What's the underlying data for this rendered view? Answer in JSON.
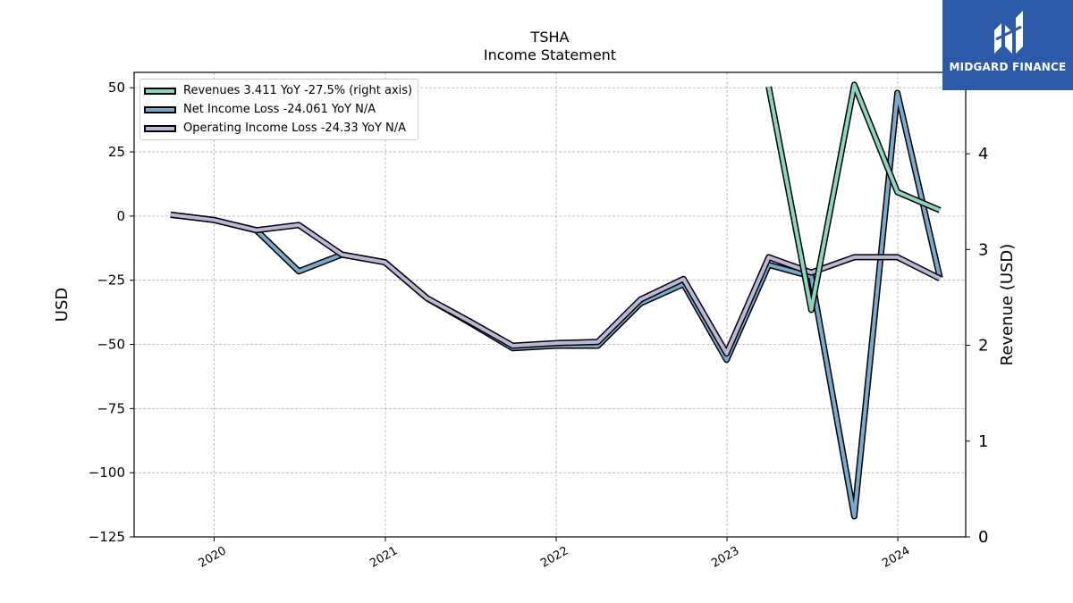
{
  "header": {
    "title": "TSHA",
    "subtitle": "Income Statement"
  },
  "brand": {
    "name": "MIDGARD FINANCE",
    "color": "#2c5aa8"
  },
  "chart_data": {
    "type": "line",
    "ylabel_left": "USD",
    "ylabel_right": "Revenue (USD)",
    "ylim_left": [
      -125,
      56
    ],
    "yticks_left": [
      50,
      25,
      0,
      -25,
      -50,
      -75,
      -100,
      -125
    ],
    "ylim_right": [
      0,
      4.85
    ],
    "yticks_right": [
      0,
      1,
      2,
      3,
      4
    ],
    "xlim": [
      "2019-07-14",
      "2024-05-25"
    ],
    "xticks": [
      {
        "date": "2020-01-01",
        "label": "2020"
      },
      {
        "date": "2021-01-01",
        "label": "2021"
      },
      {
        "date": "2022-01-01",
        "label": "2022"
      },
      {
        "date": "2023-01-01",
        "label": "2023"
      },
      {
        "date": "2024-01-01",
        "label": "2024"
      }
    ],
    "grid": true,
    "legend_position": "top-left",
    "series": [
      {
        "name": "Net Income Loss",
        "legend": "Net Income Loss  -24.061 YoY N/A",
        "axis": "left",
        "color": "#7aaacb",
        "x": [
          "2019-09-30",
          "2019-12-31",
          "2020-03-31",
          "2020-06-30",
          "2020-09-30",
          "2020-12-31",
          "2021-03-31",
          "2021-06-30",
          "2021-09-30",
          "2021-12-31",
          "2022-03-31",
          "2022-06-30",
          "2022-09-30",
          "2022-12-31",
          "2023-03-31",
          "2023-06-30",
          "2023-09-30",
          "2023-12-31",
          "2024-03-31"
        ],
        "y": [
          0.5,
          -1.5,
          -5.5,
          -21.5,
          -15,
          -18,
          -32,
          -41.5,
          -51.5,
          -50.5,
          -50.5,
          -34,
          -26.5,
          -56,
          -19,
          -23.5,
          -117,
          48,
          -24.061
        ]
      },
      {
        "name": "Operating Income Loss",
        "legend": "Operating Income Loss  -24.33 YoY N/A",
        "axis": "left",
        "color": "#bcb6d8",
        "x": [
          "2019-09-30",
          "2019-12-31",
          "2020-03-31",
          "2020-06-30",
          "2020-09-30",
          "2020-12-31",
          "2021-03-31",
          "2021-06-30",
          "2021-09-30",
          "2021-12-31",
          "2022-03-31",
          "2022-06-30",
          "2022-09-30",
          "2022-12-31",
          "2023-03-31",
          "2023-06-30",
          "2023-09-30",
          "2023-12-31",
          "2024-03-31"
        ],
        "y": [
          0.5,
          -1.5,
          -5.5,
          -3.5,
          -15,
          -18,
          -32,
          -41,
          -50.5,
          -49.5,
          -49,
          -32.5,
          -24.5,
          -53.5,
          -16,
          -22,
          -16,
          -16,
          -24.33
        ]
      },
      {
        "name": "Revenues",
        "legend": "Revenues  3.411 YoY -27.5% (right axis)",
        "axis": "right",
        "color": "#8dd3c1",
        "x": [
          "2023-03-31",
          "2023-06-30",
          "2023-09-30",
          "2023-12-31",
          "2024-03-31"
        ],
        "y": [
          4.7,
          2.37,
          4.72,
          3.6,
          3.411
        ]
      }
    ]
  }
}
